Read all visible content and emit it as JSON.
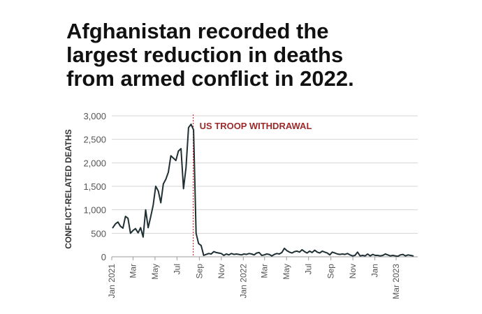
{
  "title_lines": [
    "Afghanistan recorded the",
    "largest reduction in deaths",
    "from armed conflict in 2022."
  ],
  "chart_data": {
    "type": "line",
    "title": "Afghanistan recorded the largest reduction in deaths from armed conflict in 2022.",
    "ylabel": "CONFLICT-RELATED DEATHS",
    "xlabel": "",
    "ylim": [
      0,
      3000
    ],
    "yticks": [
      {
        "value": 0,
        "label": "0"
      },
      {
        "value": 500,
        "label": "500"
      },
      {
        "value": 1000,
        "label": "1,000"
      },
      {
        "value": 1500,
        "label": "1,500"
      },
      {
        "value": 2000,
        "label": "2,000"
      },
      {
        "value": 2500,
        "label": "2,500"
      },
      {
        "value": 3000,
        "label": "3,000"
      }
    ],
    "xlim": [
      "2021-01-01",
      "2023-04-30"
    ],
    "xticks": [
      {
        "date": "2021-01-01",
        "label": "Jan 2021"
      },
      {
        "date": "2021-03-01",
        "label": "Mar"
      },
      {
        "date": "2021-05-01",
        "label": "May"
      },
      {
        "date": "2021-07-01",
        "label": "Jul"
      },
      {
        "date": "2021-09-01",
        "label": "Sep"
      },
      {
        "date": "2021-11-01",
        "label": "Nov"
      },
      {
        "date": "2022-01-01",
        "label": "Jan 2022"
      },
      {
        "date": "2022-03-01",
        "label": "Mar"
      },
      {
        "date": "2022-05-01",
        "label": "May"
      },
      {
        "date": "2022-07-01",
        "label": "Jul"
      },
      {
        "date": "2022-09-01",
        "label": "Sep"
      },
      {
        "date": "2022-11-01",
        "label": "Nov"
      },
      {
        "date": "2023-01-01",
        "label": "Jan"
      },
      {
        "date": "2023-03-01",
        "label": "Mar 2023"
      }
    ],
    "grid": true,
    "line_color": "#1f2f33",
    "annotation": {
      "date": "2021-08-15",
      "label": "US TROOP WITHDRAWAL",
      "color": "#9b2b2b"
    },
    "series": [
      {
        "x": [
          "2021-01-04",
          "2021-01-11",
          "2021-01-18",
          "2021-01-25",
          "2021-02-01",
          "2021-02-08",
          "2021-02-15",
          "2021-02-22",
          "2021-03-01",
          "2021-03-08",
          "2021-03-15",
          "2021-03-22",
          "2021-03-29",
          "2021-04-05",
          "2021-04-12",
          "2021-04-19",
          "2021-04-26",
          "2021-05-03",
          "2021-05-10",
          "2021-05-17",
          "2021-05-24",
          "2021-05-31",
          "2021-06-07",
          "2021-06-14",
          "2021-06-21",
          "2021-06-28",
          "2021-07-05",
          "2021-07-12",
          "2021-07-19",
          "2021-07-26",
          "2021-08-02",
          "2021-08-09",
          "2021-08-16",
          "2021-08-23",
          "2021-08-30",
          "2021-09-06",
          "2021-09-13",
          "2021-09-20",
          "2021-09-27",
          "2021-10-04",
          "2021-10-11",
          "2021-10-18",
          "2021-10-25",
          "2021-11-01",
          "2021-11-08",
          "2021-11-15",
          "2021-11-22",
          "2021-11-29",
          "2021-12-06",
          "2021-12-13",
          "2021-12-20",
          "2021-12-27",
          "2022-01-03",
          "2022-01-10",
          "2022-01-17",
          "2022-01-24",
          "2022-01-31",
          "2022-02-07",
          "2022-02-14",
          "2022-02-21",
          "2022-02-28",
          "2022-03-07",
          "2022-03-14",
          "2022-03-21",
          "2022-03-28",
          "2022-04-04",
          "2022-04-11",
          "2022-04-18",
          "2022-04-25",
          "2022-05-02",
          "2022-05-09",
          "2022-05-16",
          "2022-05-23",
          "2022-05-30",
          "2022-06-06",
          "2022-06-13",
          "2022-06-20",
          "2022-06-27",
          "2022-07-04",
          "2022-07-11",
          "2022-07-18",
          "2022-07-25",
          "2022-08-01",
          "2022-08-08",
          "2022-08-15",
          "2022-08-22",
          "2022-08-29",
          "2022-09-05",
          "2022-09-12",
          "2022-09-19",
          "2022-09-26",
          "2022-10-03",
          "2022-10-10",
          "2022-10-17",
          "2022-10-24",
          "2022-10-31",
          "2022-11-07",
          "2022-11-14",
          "2022-11-21",
          "2022-11-28",
          "2022-12-05",
          "2022-12-12",
          "2022-12-19",
          "2022-12-26",
          "2023-01-02",
          "2023-01-09",
          "2023-01-16",
          "2023-01-23",
          "2023-01-30",
          "2023-02-06",
          "2023-02-13",
          "2023-02-20",
          "2023-02-27",
          "2023-03-06",
          "2023-03-13",
          "2023-03-20",
          "2023-03-27",
          "2023-04-03",
          "2023-04-10",
          "2023-04-17"
        ],
        "values": [
          620,
          700,
          740,
          650,
          610,
          860,
          820,
          500,
          560,
          600,
          510,
          620,
          420,
          1000,
          620,
          850,
          1100,
          1500,
          1400,
          1150,
          1550,
          1650,
          1800,
          2150,
          2100,
          2050,
          2250,
          2300,
          1450,
          1900,
          2750,
          2820,
          2700,
          500,
          280,
          240,
          30,
          50,
          70,
          60,
          110,
          90,
          80,
          70,
          30,
          60,
          40,
          70,
          50,
          60,
          50,
          40,
          60,
          50,
          70,
          60,
          40,
          80,
          90,
          30,
          40,
          60,
          50,
          20,
          50,
          70,
          60,
          90,
          180,
          130,
          100,
          80,
          110,
          120,
          100,
          150,
          110,
          80,
          120,
          90,
          140,
          100,
          80,
          120,
          100,
          80,
          40,
          100,
          80,
          60,
          50,
          60,
          50,
          70,
          40,
          20,
          30,
          100,
          20,
          30,
          20,
          60,
          20,
          50,
          30,
          30,
          20,
          30,
          60,
          40,
          20,
          30,
          20,
          10,
          40,
          50,
          20,
          40,
          30,
          20
        ]
      }
    ]
  }
}
